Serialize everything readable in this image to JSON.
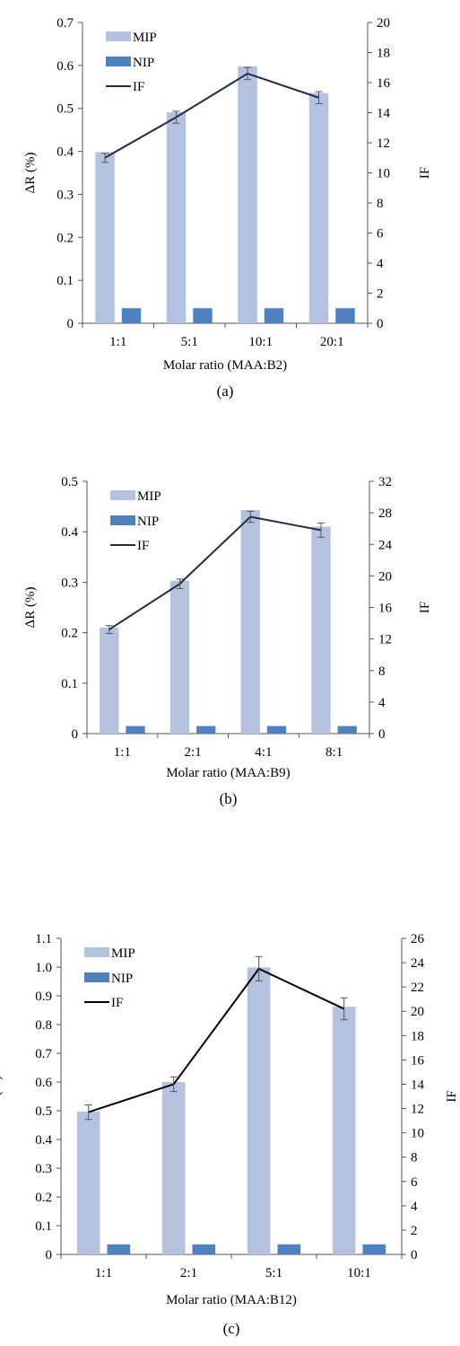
{
  "chart_data": [
    {
      "type": "bar",
      "panel_label": "(a)",
      "categories": [
        "1:1",
        "5:1",
        "10:1",
        "20:1"
      ],
      "xlabel": "Molar ratio (MAA:B2)",
      "ylabel": "ΔR (%)",
      "y2label": "IF",
      "ylim": [
        0,
        0.7
      ],
      "y2lim": [
        0,
        20
      ],
      "yticks": [
        "0",
        "0.1",
        "0.2",
        "0.3",
        "0.4",
        "0.5",
        "0.6",
        "0.7"
      ],
      "y2ticks": [
        "0",
        "2",
        "4",
        "6",
        "8",
        "10",
        "12",
        "14",
        "16",
        "18",
        "20"
      ],
      "legend_position": "top-left",
      "series": [
        {
          "name": "MIP",
          "kind": "bar",
          "axis": "left",
          "color": "#b4c2df",
          "values": [
            0.398,
            0.491,
            0.598,
            0.536
          ]
        },
        {
          "name": "NIP",
          "kind": "bar",
          "axis": "left",
          "color": "#4f81c1",
          "values": [
            0.035,
            0.035,
            0.035,
            0.035
          ]
        },
        {
          "name": "IF",
          "kind": "line",
          "axis": "right",
          "color": "#1f2b45",
          "values": [
            11.0,
            13.7,
            16.6,
            15.0
          ],
          "errors": [
            0.3,
            0.4,
            0.4,
            0.4
          ]
        }
      ]
    },
    {
      "type": "bar",
      "panel_label": "(b)",
      "categories": [
        "1:1",
        "2:1",
        "4:1",
        "8:1"
      ],
      "xlabel": "Molar ratio (MAA:B9)",
      "ylabel": "ΔR (%)",
      "y2label": "IF",
      "ylim": [
        0,
        0.5
      ],
      "y2lim": [
        0,
        32
      ],
      "yticks": [
        "0",
        "0.1",
        "0.2",
        "0.3",
        "0.4",
        "0.5"
      ],
      "y2ticks": [
        "0",
        "4",
        "8",
        "12",
        "16",
        "20",
        "24",
        "28",
        "32"
      ],
      "legend_position": "top-left",
      "series": [
        {
          "name": "MIP",
          "kind": "bar",
          "axis": "left",
          "color": "#b4c2df",
          "values": [
            0.21,
            0.303,
            0.443,
            0.41
          ]
        },
        {
          "name": "NIP",
          "kind": "bar",
          "axis": "left",
          "color": "#4f81c1",
          "values": [
            0.015,
            0.015,
            0.015,
            0.015
          ]
        },
        {
          "name": "IF",
          "kind": "line",
          "axis": "right",
          "color": "#1f2b45",
          "values": [
            13.2,
            19.0,
            27.5,
            25.8
          ],
          "errors": [
            0.5,
            0.6,
            0.7,
            0.9
          ]
        }
      ]
    },
    {
      "type": "bar",
      "panel_label": "(c)",
      "categories": [
        "1:1",
        "2:1",
        "5:1",
        "10:1"
      ],
      "xlabel": "Molar ratio (MAA:B12)",
      "ylabel": "ΔR (%)",
      "y2label": "IF",
      "ylim": [
        0,
        1.1
      ],
      "y2lim": [
        0,
        26
      ],
      "yticks": [
        "0",
        "0.1",
        "0.2",
        "0.3",
        "0.4",
        "0.5",
        "0.6",
        "0.7",
        "0.8",
        "0.9",
        "1.0",
        "1.1"
      ],
      "y2ticks": [
        "0",
        "2",
        "4",
        "6",
        "8",
        "10",
        "12",
        "14",
        "16",
        "18",
        "20",
        "22",
        "24",
        "26"
      ],
      "legend_position": "top-left",
      "series": [
        {
          "name": "MIP",
          "kind": "bar",
          "axis": "left",
          "color": "#b4c2df",
          "values": [
            0.497,
            0.6,
            0.999,
            0.862
          ]
        },
        {
          "name": "NIP",
          "kind": "bar",
          "axis": "left",
          "color": "#4f81c1",
          "values": [
            0.035,
            0.035,
            0.035,
            0.035
          ]
        },
        {
          "name": "IF",
          "kind": "line",
          "axis": "right",
          "color": "#000000",
          "values": [
            11.7,
            14.0,
            23.5,
            20.2
          ],
          "errors": [
            0.6,
            0.6,
            1.0,
            0.9
          ]
        }
      ]
    }
  ]
}
